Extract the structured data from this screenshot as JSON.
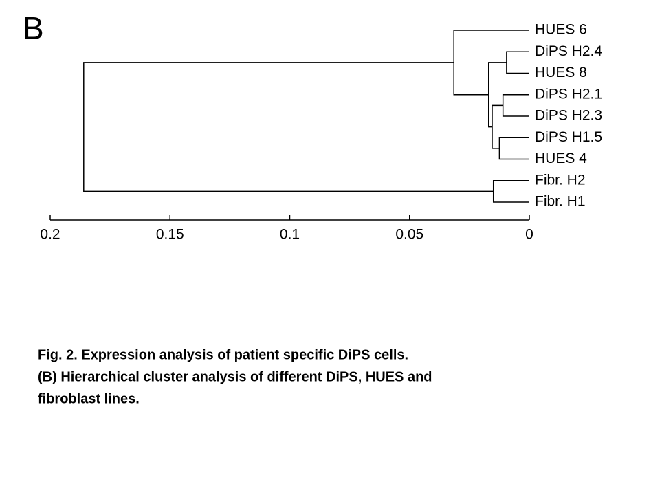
{
  "panel_label": "B",
  "chart_data": {
    "type": "dendrogram",
    "leaves": [
      "HUES 6",
      "DiPS H2.4",
      "HUES 8",
      "DiPS H2.1",
      "DiPS H2.3",
      "DiPS H1.5",
      "HUES 4",
      "Fibr. H2",
      "Fibr. H1"
    ],
    "merges": [
      {
        "left": 1,
        "right": 2,
        "height": 0.0095
      },
      {
        "left": 3,
        "right": 4,
        "height": 0.011
      },
      {
        "left": 5,
        "right": 6,
        "height": 0.0125
      },
      {
        "left": 10,
        "right": 11,
        "height": 0.0155
      },
      {
        "left": 9,
        "right": 12,
        "height": 0.017
      },
      {
        "left": 0,
        "right": 13,
        "height": 0.0315
      },
      {
        "left": 7,
        "right": 8,
        "height": 0.015
      },
      {
        "left": 14,
        "right": 15,
        "height": 0.186
      }
    ],
    "xlim": [
      0.2,
      0
    ],
    "xticks": [
      0.2,
      0.15,
      0.1,
      0.05,
      0
    ],
    "color": "#000000"
  },
  "caption": [
    "Fig. 2. Expression analysis of patient specific DiPS cells.",
    "(B) Hierarchical cluster analysis of different DiPS, HUES and",
    "fibroblast lines."
  ]
}
